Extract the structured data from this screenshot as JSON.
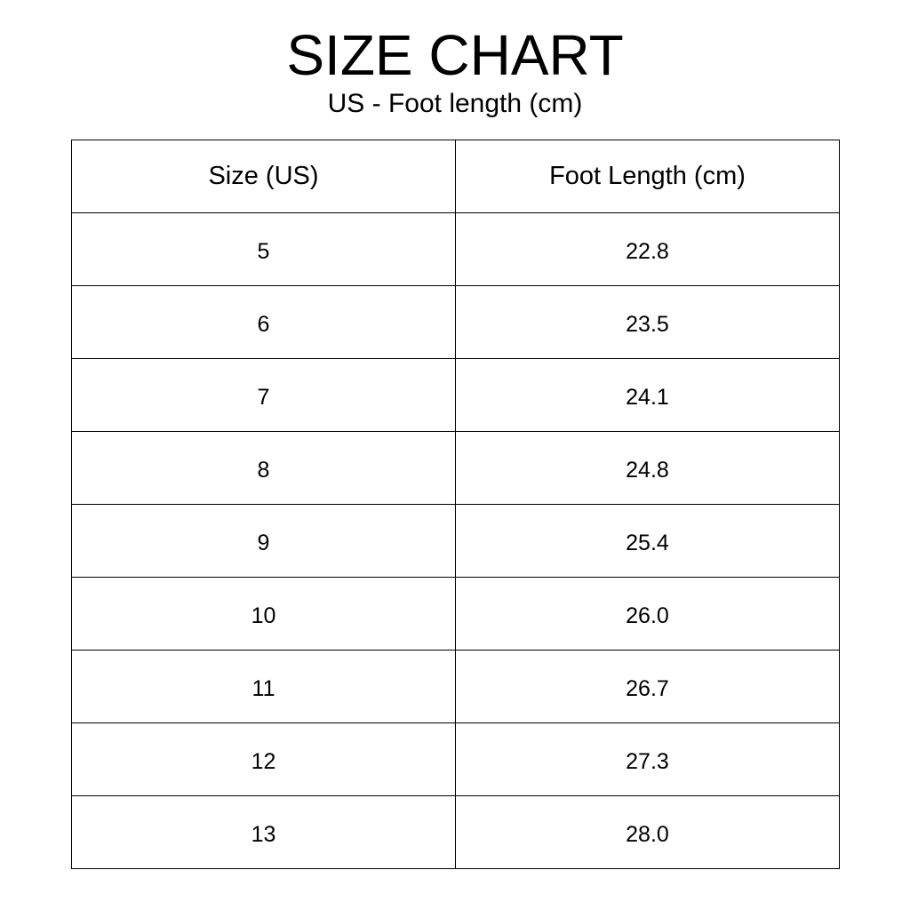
{
  "title": "SIZE CHART",
  "subtitle": "US - Foot length (cm)",
  "table": {
    "headers": [
      "Size (US)",
      "Foot Length (cm)"
    ],
    "rows": [
      [
        "5",
        "22.8"
      ],
      [
        "6",
        "23.5"
      ],
      [
        "7",
        "24.1"
      ],
      [
        "8",
        "24.8"
      ],
      [
        "9",
        "25.4"
      ],
      [
        "10",
        "26.0"
      ],
      [
        "11",
        "26.7"
      ],
      [
        "12",
        "27.3"
      ],
      [
        "13",
        "28.0"
      ]
    ]
  }
}
